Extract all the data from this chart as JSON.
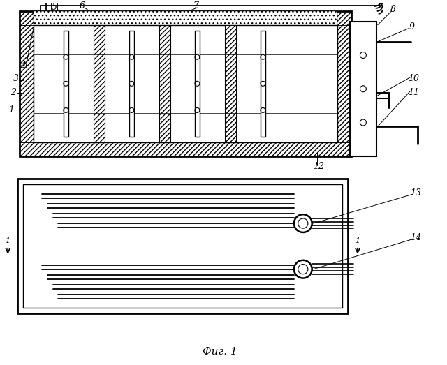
{
  "bg_color": "#ffffff",
  "line_color": "#000000",
  "fig_width": 6.4,
  "fig_height": 5.23,
  "caption": "Фиг. 1"
}
